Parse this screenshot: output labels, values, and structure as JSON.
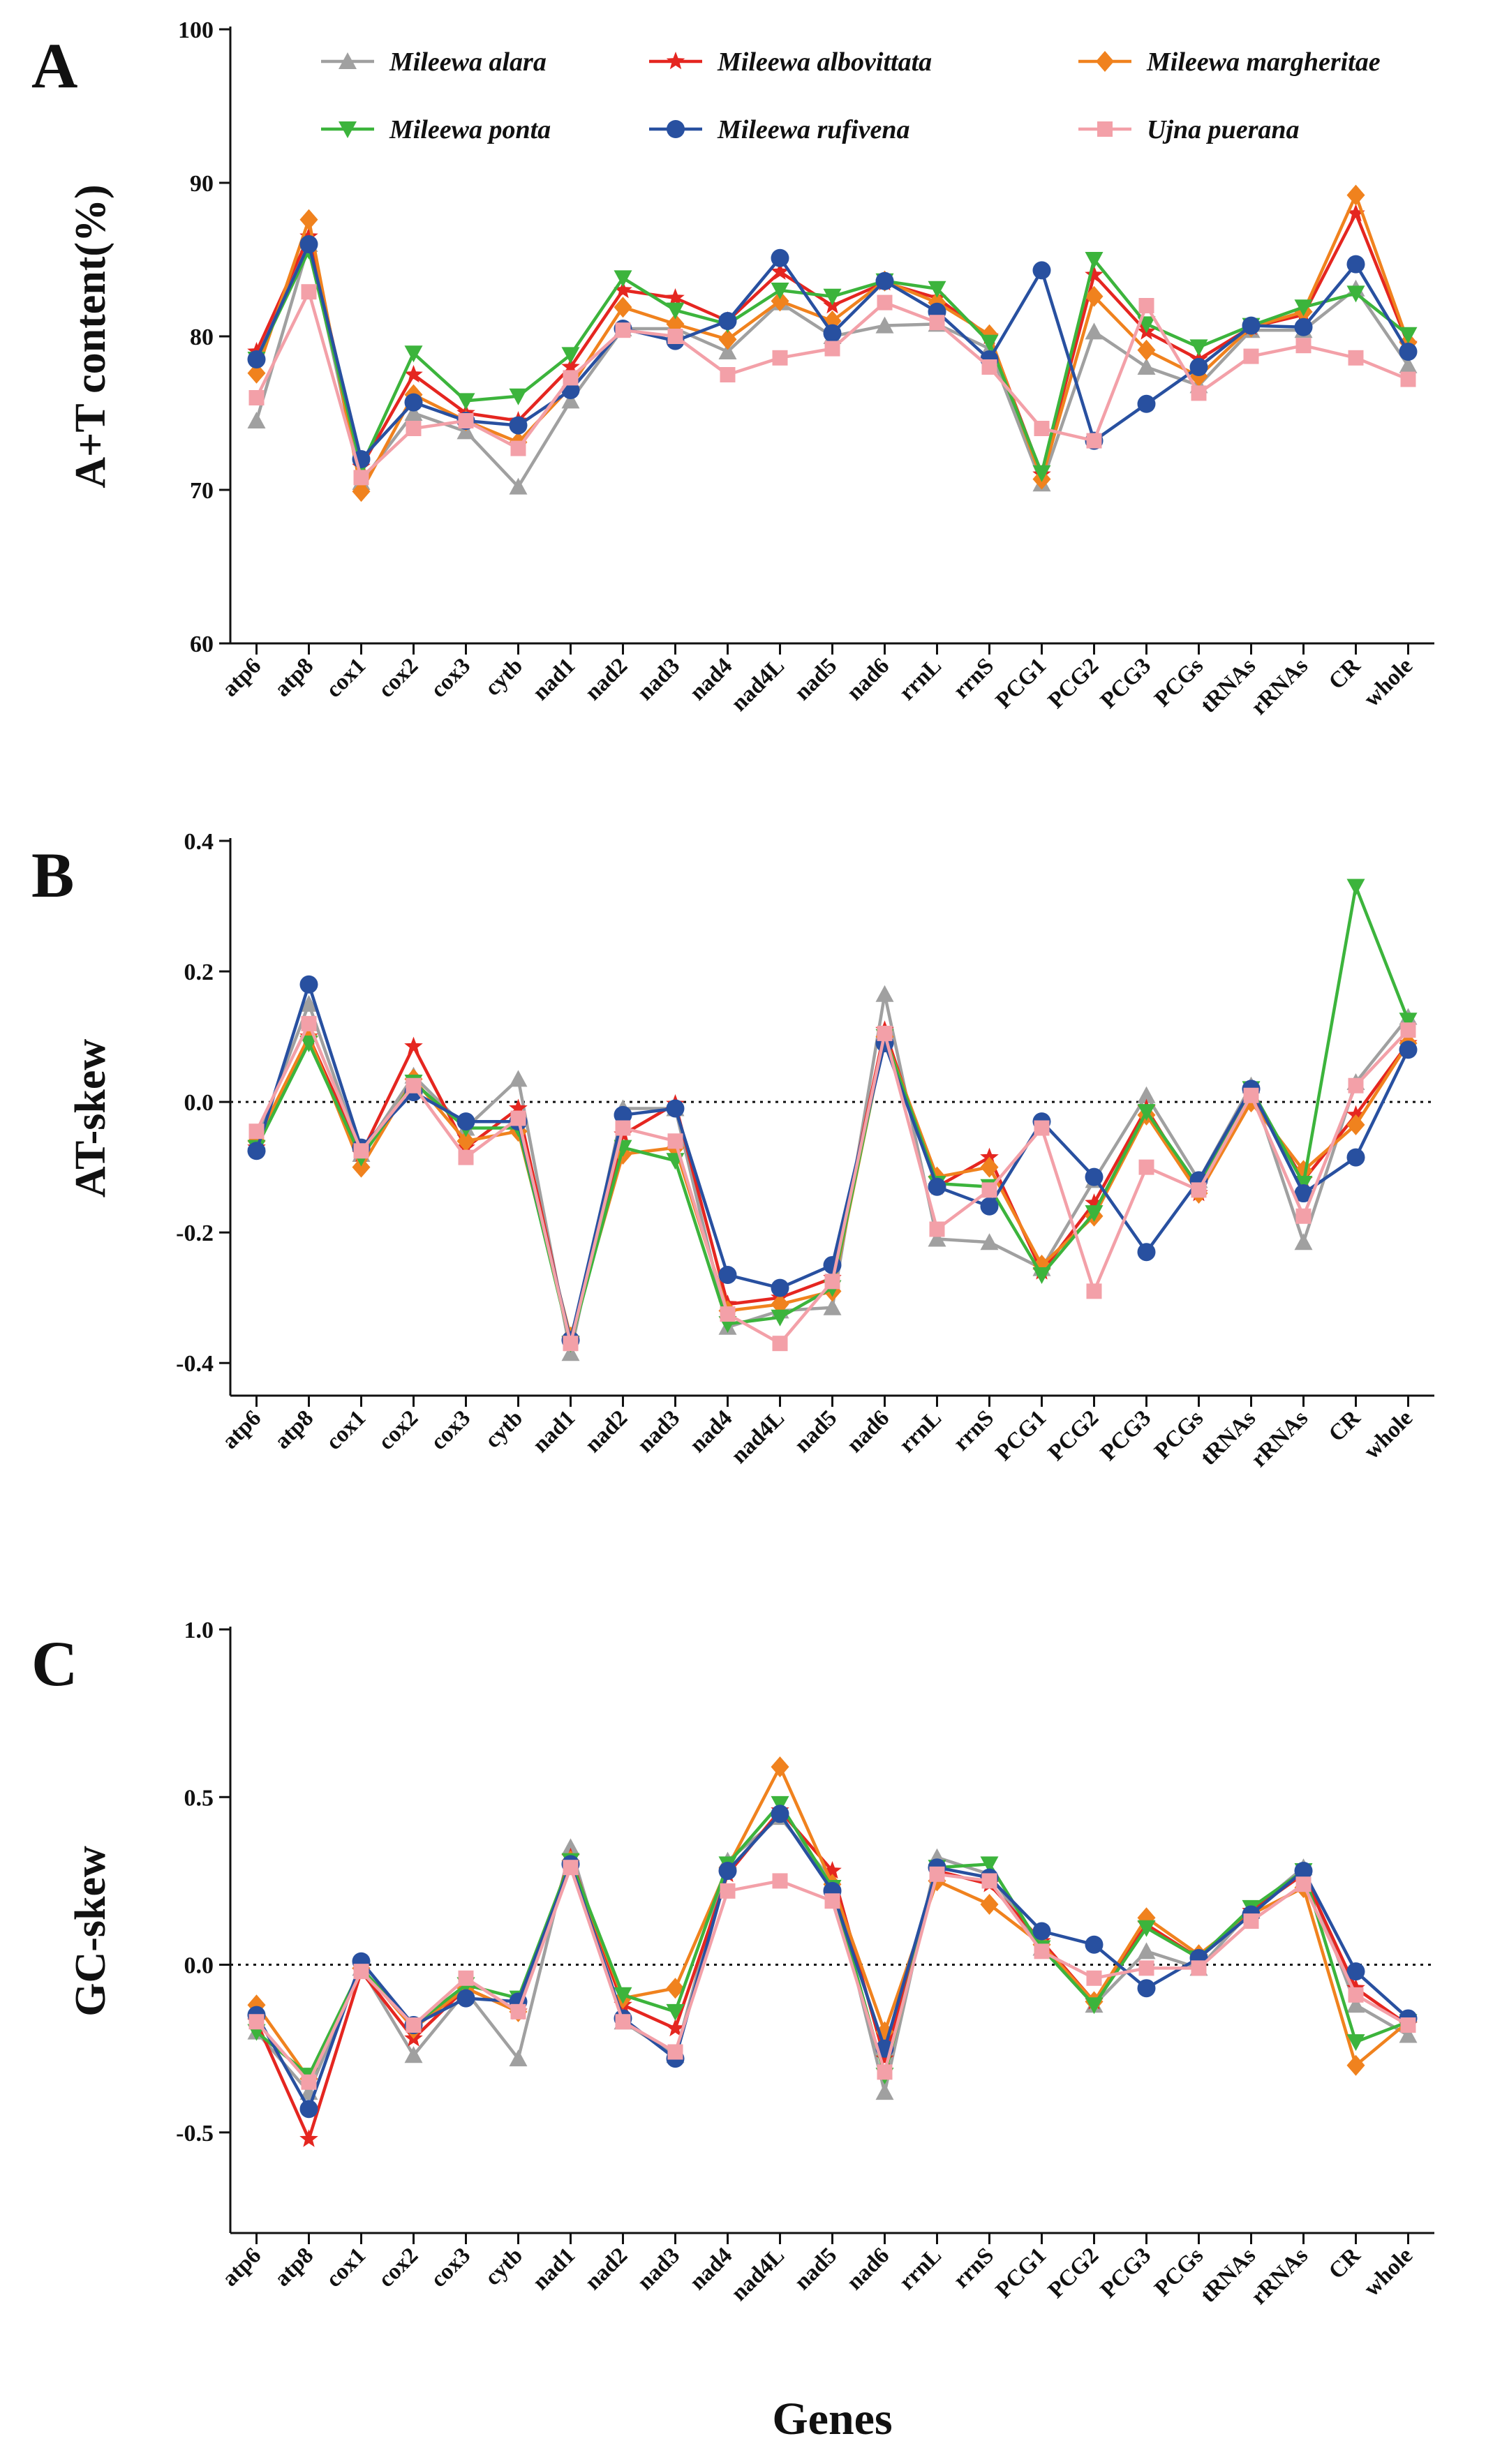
{
  "figure": {
    "xlabel": "Genes",
    "species": [
      {
        "name": "Mileewa alara",
        "color": "#a0a0a0",
        "marker": "triangle-up"
      },
      {
        "name": "Mileewa albovittata",
        "color": "#e52620",
        "marker": "star"
      },
      {
        "name": "Mileewa margheritae",
        "color": "#f0821e",
        "marker": "diamond"
      },
      {
        "name": "Mileewa ponta",
        "color": "#3cb43c",
        "marker": "triangle-down"
      },
      {
        "name": "Mileewa rufivena",
        "color": "#2850a0",
        "marker": "circle"
      },
      {
        "name": "Ujna puerana",
        "color": "#f3a0a8",
        "marker": "square"
      }
    ]
  },
  "chart_data": [
    {
      "type": "line",
      "panel": "A",
      "title": "",
      "ylabel": "A+T content(%)",
      "xlabel": "",
      "ylim": [
        60,
        100
      ],
      "yticks": [
        60,
        70,
        80,
        90,
        100
      ],
      "reference_line": null,
      "categories": [
        "atp6",
        "atp8",
        "cox1",
        "cox2",
        "cox3",
        "cytb",
        "nad1",
        "nad2",
        "nad3",
        "nad4",
        "nad4L",
        "nad5",
        "nad6",
        "rrnL",
        "rrnS",
        "PCG1",
        "PCG2",
        "PCG3",
        "PCGs",
        "tRNAs",
        "rRNAs",
        "CR",
        "whole"
      ],
      "series": [
        {
          "name": "Mileewa alara",
          "values": [
            74.5,
            86.0,
            70.5,
            75.0,
            73.8,
            70.2,
            75.8,
            80.5,
            80.5,
            79.0,
            82.2,
            80.0,
            80.7,
            80.8,
            79.2,
            70.4,
            80.3,
            78.0,
            76.8,
            80.4,
            80.4,
            83.1,
            78.1
          ]
        },
        {
          "name": "Mileewa albovittata",
          "values": [
            79.0,
            86.5,
            71.5,
            77.5,
            75.0,
            74.5,
            78.0,
            83.0,
            82.5,
            81.0,
            84.2,
            82.0,
            83.5,
            82.5,
            80.0,
            71.0,
            84.0,
            80.3,
            78.5,
            80.6,
            81.4,
            88.0,
            79.5
          ]
        },
        {
          "name": "Mileewa margheritae",
          "values": [
            77.6,
            87.6,
            69.9,
            76.2,
            74.5,
            73.1,
            76.7,
            81.9,
            80.8,
            79.8,
            82.3,
            81.0,
            83.6,
            82.2,
            80.1,
            70.7,
            82.6,
            79.1,
            77.4,
            80.6,
            81.6,
            89.2,
            79.6
          ]
        },
        {
          "name": "Mileewa ponta",
          "values": [
            78.5,
            85.6,
            71.5,
            78.9,
            75.8,
            76.1,
            78.8,
            83.8,
            81.7,
            80.8,
            83.0,
            82.6,
            83.6,
            83.1,
            79.6,
            71.1,
            85.0,
            80.8,
            79.3,
            80.7,
            81.9,
            82.8,
            80.1
          ]
        },
        {
          "name": "Mileewa rufivena",
          "values": [
            78.5,
            86.0,
            72.0,
            75.7,
            74.5,
            74.2,
            76.5,
            80.5,
            79.7,
            81.0,
            85.1,
            80.2,
            83.6,
            81.6,
            78.5,
            84.3,
            73.2,
            75.6,
            78.0,
            80.7,
            80.6,
            84.7,
            79.0
          ]
        },
        {
          "name": "Ujna puerana",
          "values": [
            76.0,
            82.9,
            70.8,
            74.0,
            74.5,
            72.7,
            77.3,
            80.4,
            80.0,
            77.5,
            78.6,
            79.2,
            82.2,
            80.9,
            78.0,
            74.0,
            73.2,
            82.0,
            76.3,
            78.7,
            79.4,
            78.6,
            77.2
          ]
        }
      ]
    },
    {
      "type": "line",
      "panel": "B",
      "title": "",
      "ylabel": "AT-skew",
      "xlabel": "",
      "ylim": [
        -0.45,
        0.4
      ],
      "yticks": [
        -0.4,
        -0.2,
        0.0,
        0.2,
        0.4
      ],
      "reference_line": 0,
      "categories": [
        "atp6",
        "atp8",
        "cox1",
        "cox2",
        "cox3",
        "cytb",
        "nad1",
        "nad2",
        "nad3",
        "nad4",
        "nad4L",
        "nad5",
        "nad6",
        "rrnL",
        "rrnS",
        "PCG1",
        "PCG2",
        "PCG3",
        "PCGs",
        "tRNAs",
        "rRNAs",
        "CR",
        "whole"
      ],
      "series": [
        {
          "name": "Mileewa alara",
          "values": [
            -0.06,
            0.15,
            -0.08,
            0.04,
            -0.04,
            0.035,
            -0.385,
            -0.01,
            -0.01,
            -0.345,
            -0.32,
            -0.315,
            0.165,
            -0.21,
            -0.215,
            -0.255,
            -0.12,
            0.01,
            -0.12,
            0.025,
            -0.215,
            0.03,
            0.13
          ]
        },
        {
          "name": "Mileewa albovittata",
          "values": [
            -0.07,
            0.1,
            -0.08,
            0.085,
            -0.07,
            -0.01,
            -0.37,
            -0.05,
            -0.003,
            -0.31,
            -0.3,
            -0.27,
            0.11,
            -0.13,
            -0.085,
            -0.26,
            -0.155,
            -0.01,
            -0.14,
            0.015,
            -0.12,
            -0.02,
            0.09
          ]
        },
        {
          "name": "Mileewa margheritae",
          "values": [
            -0.06,
            0.1,
            -0.1,
            0.035,
            -0.06,
            -0.045,
            -0.36,
            -0.08,
            -0.07,
            -0.32,
            -0.31,
            -0.29,
            0.1,
            -0.115,
            -0.1,
            -0.25,
            -0.175,
            -0.02,
            -0.14,
            0.0,
            -0.105,
            -0.035,
            0.09
          ]
        },
        {
          "name": "Mileewa ponta",
          "values": [
            -0.07,
            0.09,
            -0.085,
            0.03,
            -0.04,
            -0.04,
            -0.37,
            -0.07,
            -0.09,
            -0.34,
            -0.33,
            -0.285,
            0.1,
            -0.125,
            -0.13,
            -0.265,
            -0.17,
            -0.015,
            -0.13,
            0.02,
            -0.125,
            0.33,
            0.125
          ]
        },
        {
          "name": "Mileewa rufivena",
          "values": [
            -0.075,
            0.18,
            -0.07,
            0.015,
            -0.03,
            -0.03,
            -0.365,
            -0.02,
            -0.01,
            -0.265,
            -0.285,
            -0.25,
            0.09,
            -0.13,
            -0.16,
            -0.03,
            -0.115,
            -0.23,
            -0.12,
            0.02,
            -0.14,
            -0.085,
            0.08
          ]
        },
        {
          "name": "Ujna puerana",
          "values": [
            -0.045,
            0.12,
            -0.075,
            0.025,
            -0.085,
            -0.025,
            -0.37,
            -0.04,
            -0.06,
            -0.325,
            -0.37,
            -0.275,
            0.105,
            -0.195,
            -0.135,
            -0.04,
            -0.29,
            -0.1,
            -0.135,
            0.01,
            -0.175,
            0.025,
            0.11
          ]
        }
      ]
    },
    {
      "type": "line",
      "panel": "C",
      "title": "",
      "ylabel": "GC-skew",
      "xlabel": "Genes",
      "ylim": [
        -0.8,
        1.0
      ],
      "yticks": [
        -0.5,
        0.0,
        0.5,
        1.0
      ],
      "reference_line": 0,
      "categories": [
        "atp6",
        "atp8",
        "cox1",
        "cox2",
        "cox3",
        "cytb",
        "nad1",
        "nad2",
        "nad3",
        "nad4",
        "nad4L",
        "nad5",
        "nad6",
        "rrnL",
        "rrnS",
        "PCG1",
        "PCG2",
        "PCG3",
        "PCGs",
        "tRNAs",
        "rRNAs",
        "CR",
        "whole"
      ],
      "series": [
        {
          "name": "Mileewa alara",
          "values": [
            -0.2,
            -0.38,
            -0.01,
            -0.27,
            -0.08,
            -0.28,
            0.35,
            -0.17,
            -0.27,
            0.31,
            0.44,
            0.25,
            -0.38,
            0.32,
            0.27,
            0.05,
            -0.12,
            0.04,
            -0.01,
            0.16,
            0.29,
            -0.12,
            -0.21
          ]
        },
        {
          "name": "Mileewa albovittata",
          "values": [
            -0.17,
            -0.52,
            -0.02,
            -0.22,
            -0.07,
            -0.14,
            0.32,
            -0.12,
            -0.19,
            0.27,
            0.46,
            0.28,
            -0.28,
            0.28,
            0.24,
            0.07,
            -0.11,
            0.12,
            0.02,
            0.16,
            0.27,
            -0.07,
            -0.18
          ]
        },
        {
          "name": "Mileewa margheritae",
          "values": [
            -0.12,
            -0.34,
            -0.01,
            -0.19,
            -0.07,
            -0.14,
            0.31,
            -0.1,
            -0.07,
            0.29,
            0.59,
            0.24,
            -0.2,
            0.25,
            0.18,
            0.06,
            -0.11,
            0.14,
            0.03,
            0.15,
            0.23,
            -0.3,
            -0.17
          ]
        },
        {
          "name": "Mileewa ponta",
          "values": [
            -0.2,
            -0.33,
            -0.01,
            -0.18,
            -0.06,
            -0.1,
            0.31,
            -0.09,
            -0.14,
            0.3,
            0.48,
            0.23,
            -0.33,
            0.29,
            0.3,
            0.05,
            -0.12,
            0.11,
            0.02,
            0.17,
            0.28,
            -0.23,
            -0.17
          ]
        },
        {
          "name": "Mileewa rufivena",
          "values": [
            -0.15,
            -0.43,
            0.01,
            -0.18,
            -0.1,
            -0.11,
            0.3,
            -0.16,
            -0.28,
            0.28,
            0.45,
            0.22,
            -0.25,
            0.29,
            0.26,
            0.1,
            0.06,
            -0.07,
            0.02,
            0.15,
            0.28,
            -0.02,
            -0.16
          ]
        },
        {
          "name": "Ujna puerana",
          "values": [
            -0.17,
            -0.35,
            -0.02,
            -0.18,
            -0.04,
            -0.14,
            0.29,
            -0.17,
            -0.26,
            0.22,
            0.25,
            0.19,
            -0.32,
            0.27,
            0.25,
            0.04,
            -0.04,
            -0.01,
            -0.01,
            0.13,
            0.24,
            -0.09,
            -0.18
          ]
        }
      ]
    }
  ]
}
